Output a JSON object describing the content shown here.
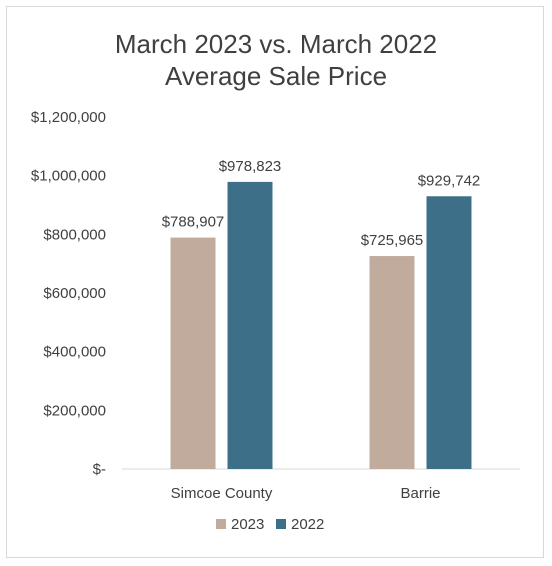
{
  "chart_data": {
    "type": "bar",
    "title_lines": [
      "March 2023 vs. March 2022",
      "Average Sale Price"
    ],
    "categories": [
      "Simcoe County",
      "Barrie"
    ],
    "series": [
      {
        "name": "2023",
        "values": [
          788907,
          725965
        ],
        "labels": [
          "$788,907",
          "$725,965"
        ],
        "color": "#c0ab9d"
      },
      {
        "name": "2022",
        "values": [
          978823,
          929742
        ],
        "labels": [
          "$978,823",
          "$929,742"
        ],
        "color": "#3d7088"
      }
    ],
    "ylim": [
      0,
      1200000
    ],
    "y_ticks": [
      {
        "value": 0,
        "label": "$-"
      },
      {
        "value": 200000,
        "label": "$200,000"
      },
      {
        "value": 400000,
        "label": "$400,000"
      },
      {
        "value": 600000,
        "label": "$600,000"
      },
      {
        "value": 800000,
        "label": "$800,000"
      },
      {
        "value": 1000000,
        "label": "$1,000,000"
      },
      {
        "value": 1200000,
        "label": "$1,200,000"
      }
    ],
    "grid": false,
    "legend_position": "bottom"
  }
}
